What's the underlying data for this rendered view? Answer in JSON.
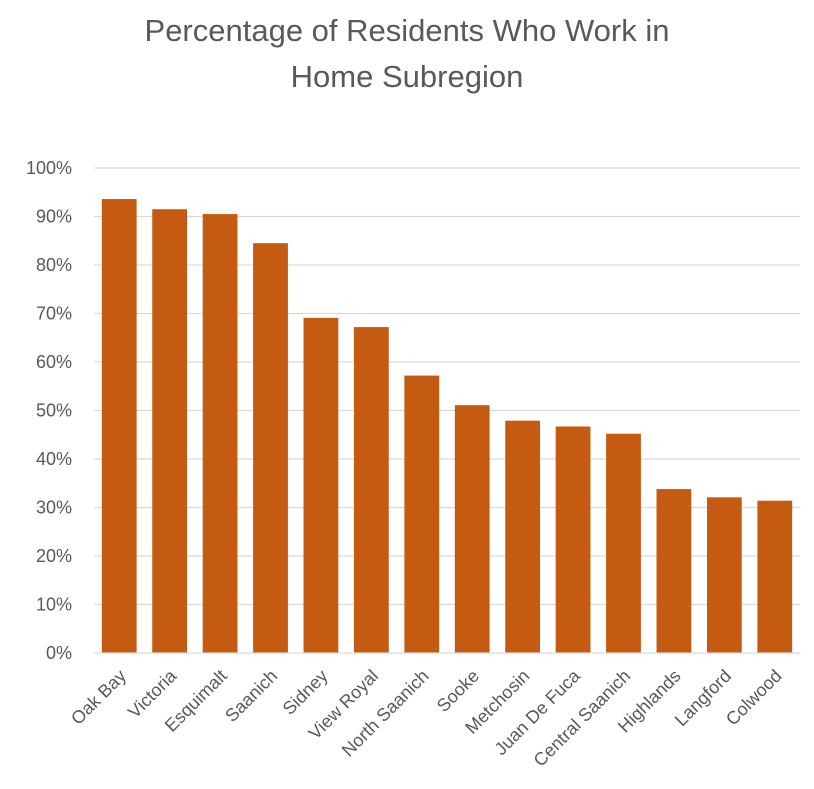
{
  "chart_data": {
    "type": "bar",
    "title_lines": [
      "Percentage of Residents Who Work in",
      "Home Subregion"
    ],
    "categories": [
      "Oak Bay",
      "Victoria",
      "Esquimalt",
      "Saanich",
      "Sidney",
      "View Royal",
      "North Saanich",
      "Sooke",
      "Metchosin",
      "Juan De Fuca",
      "Central Saanich",
      "Highlands",
      "Langford",
      "Colwood"
    ],
    "values": [
      93.6,
      91.5,
      90.5,
      84.5,
      69.1,
      67.2,
      57.2,
      51.1,
      47.9,
      46.7,
      45.2,
      33.8,
      32.1,
      31.4
    ],
    "y_ticks": [
      "0%",
      "10%",
      "20%",
      "30%",
      "40%",
      "50%",
      "60%",
      "70%",
      "80%",
      "90%",
      "100%"
    ],
    "ylim": [
      0,
      100
    ],
    "grid": true,
    "bar_color": "#C55A11",
    "grid_color": "#D9D9D9",
    "text_color": "#595959"
  }
}
